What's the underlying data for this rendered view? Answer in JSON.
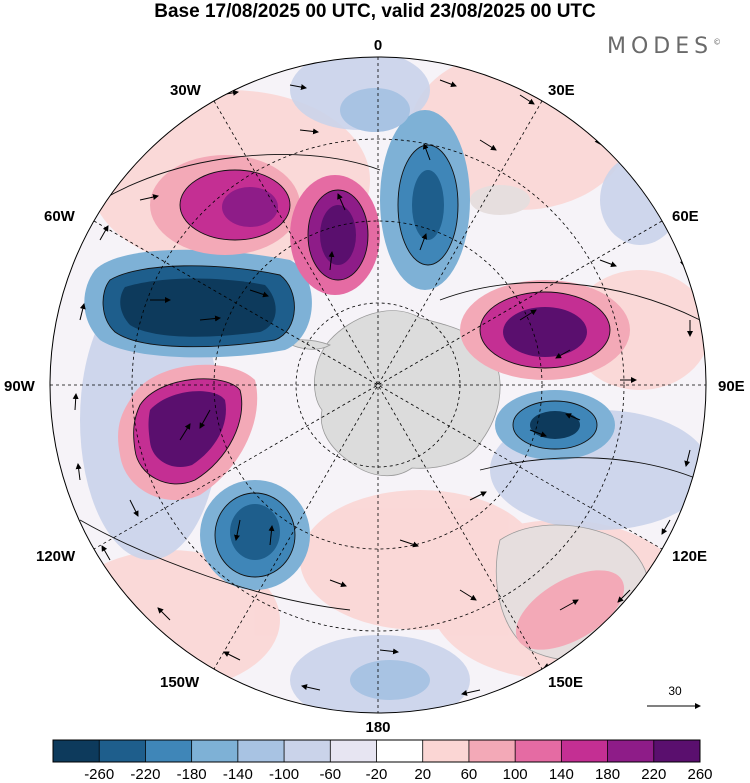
{
  "title": "Base 17/08/2025 00 UTC, valid 23/08/2025 00 UTC",
  "brand": "MODES",
  "brand_mark": "©",
  "longitude_labels": {
    "lon_0": "0",
    "lon_30e": "30E",
    "lon_60e": "60E",
    "lon_90e": "90E",
    "lon_120e": "120E",
    "lon_150e": "150E",
    "lon_180": "180",
    "lon_150w": "150W",
    "lon_120w": "120W",
    "lon_90w": "90W",
    "lon_60w": "60W",
    "lon_30w": "30W"
  },
  "vector_reference": {
    "label": "30"
  },
  "colorbar": {
    "colors": [
      "#0d3a5c",
      "#1e5e8c",
      "#3f86b8",
      "#7eb1d6",
      "#a8c3e3",
      "#cad3ea",
      "#e7e5f2",
      "#ffffff",
      "#fbd6d4",
      "#f3a9b7",
      "#e56ba3",
      "#c42f93",
      "#8e1c88",
      "#5a0f6e"
    ],
    "labels": [
      "-260",
      "-220",
      "-180",
      "-140",
      "-100",
      "-60",
      "-20",
      "20",
      "60",
      "100",
      "140",
      "180",
      "220",
      "260"
    ]
  },
  "color_key": {
    "anom_neg_strong": "#0d3a5c",
    "anom_neg_mid": "#3f86b8",
    "anom_neg_weak": "#a8c3e3",
    "anom_pos_weak": "#fbd6d4",
    "anom_pos_mid": "#e56ba3",
    "anom_pos_strong": "#8e1c88",
    "land": "#d9d9d9"
  }
}
